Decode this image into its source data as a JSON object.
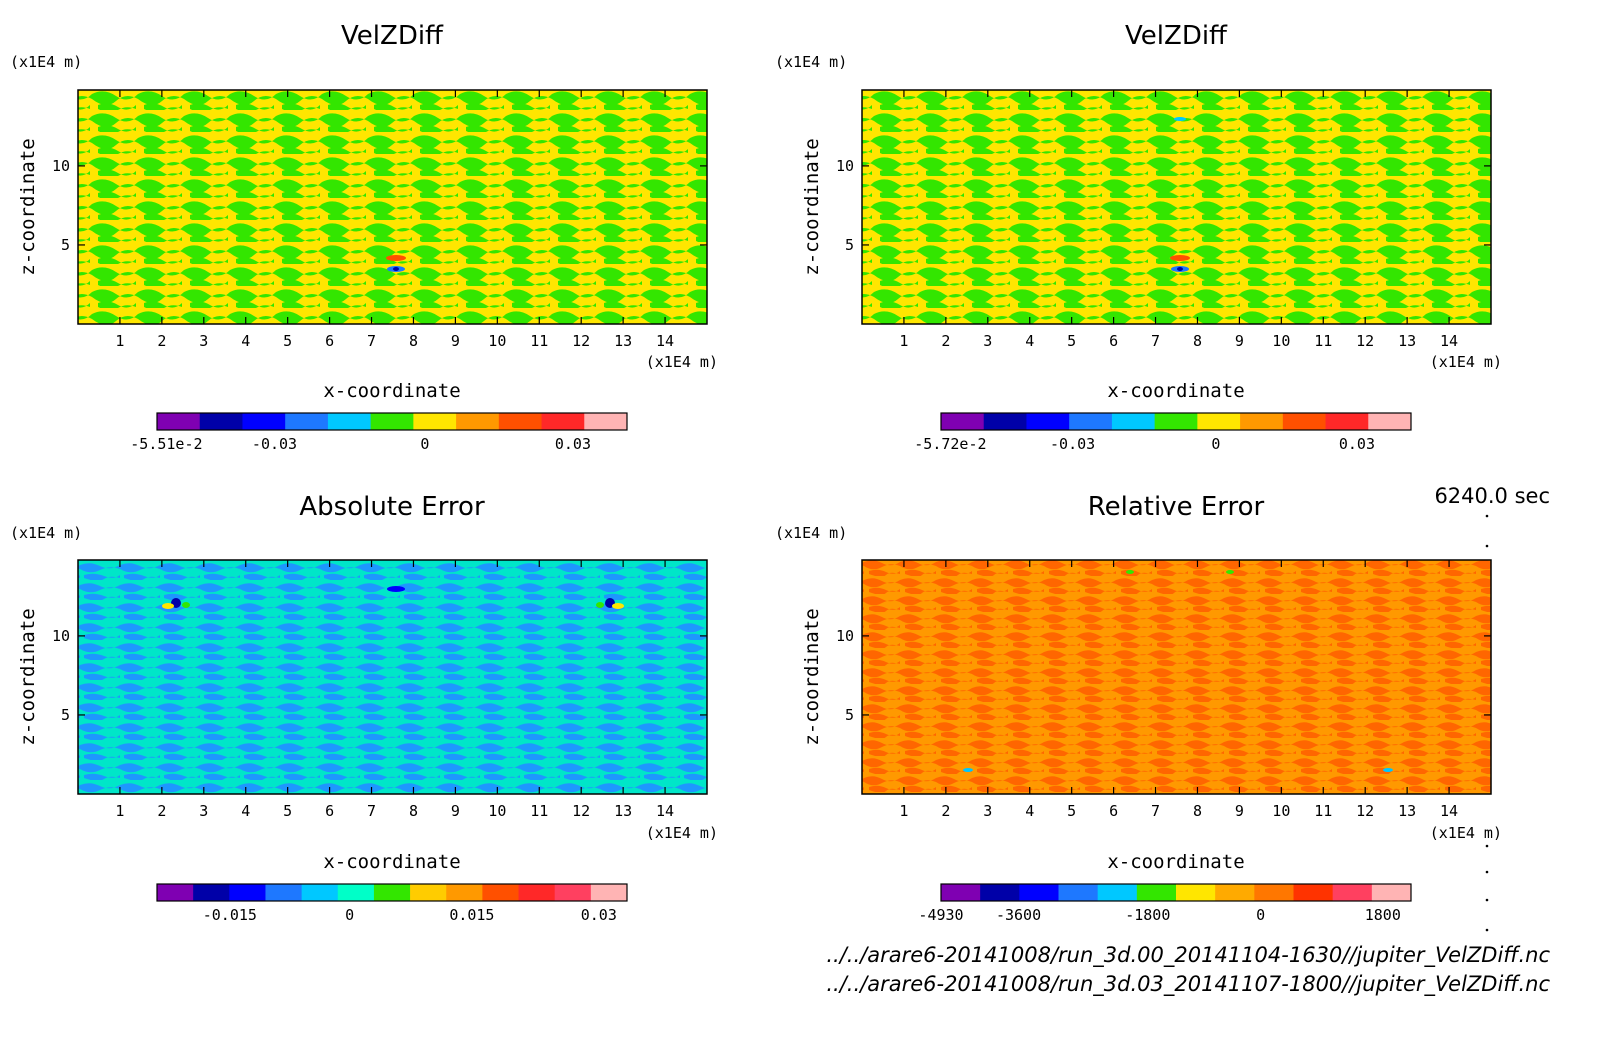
{
  "chart_data": [
    {
      "id": "p1",
      "type": "heatmap",
      "title": "VelZDiff",
      "xlabel": "x-coordinate",
      "ylabel": "z-coordinate",
      "x_unit": "(x1E4 m)",
      "y_unit": "(x1E4 m)",
      "xlim": [
        0,
        15
      ],
      "ylim": [
        0,
        14.8
      ],
      "x_ticks": [
        1,
        2,
        3,
        4,
        5,
        6,
        7,
        8,
        9,
        10,
        11,
        12,
        13,
        14
      ],
      "y_ticks": [
        5,
        10
      ],
      "pattern_colors": [
        "#ffe600",
        "#33e600"
      ],
      "colorbar": {
        "colors": [
          "#7f00b2",
          "#0000a8",
          "#0000ff",
          "#1e78ff",
          "#00c8ff",
          "#33e600",
          "#ffe600",
          "#ff9900",
          "#ff5000",
          "#ff2828",
          "#ffb4b4"
        ],
        "ticks": [
          {
            "label": "-5.51e-2",
            "frac": 0.02
          },
          {
            "label": "-0.03",
            "frac": 0.25
          },
          {
            "label": "0",
            "frac": 0.57
          },
          {
            "label": "0.03",
            "frac": 0.885
          }
        ]
      }
    },
    {
      "id": "p2",
      "type": "heatmap",
      "title": "VelZDiff",
      "xlabel": "x-coordinate",
      "ylabel": "z-coordinate",
      "x_unit": "(x1E4 m)",
      "y_unit": "(x1E4 m)",
      "xlim": [
        0,
        15
      ],
      "ylim": [
        0,
        14.8
      ],
      "x_ticks": [
        1,
        2,
        3,
        4,
        5,
        6,
        7,
        8,
        9,
        10,
        11,
        12,
        13,
        14
      ],
      "y_ticks": [
        5,
        10
      ],
      "pattern_colors": [
        "#ffe600",
        "#33e600"
      ],
      "colorbar": {
        "colors": [
          "#7f00b2",
          "#0000a8",
          "#0000ff",
          "#1e78ff",
          "#00c8ff",
          "#33e600",
          "#ffe600",
          "#ff9900",
          "#ff5000",
          "#ff2828",
          "#ffb4b4"
        ],
        "ticks": [
          {
            "label": "-5.72e-2",
            "frac": 0.02
          },
          {
            "label": "-0.03",
            "frac": 0.28
          },
          {
            "label": "0",
            "frac": 0.585
          },
          {
            "label": "0.03",
            "frac": 0.885
          }
        ]
      }
    },
    {
      "id": "p3",
      "type": "heatmap",
      "title": "Absolute Error",
      "xlabel": "x-coordinate",
      "ylabel": "z-coordinate",
      "x_unit": "(x1E4 m)",
      "y_unit": "(x1E4 m)",
      "xlim": [
        0,
        15
      ],
      "ylim": [
        0,
        14.8
      ],
      "x_ticks": [
        1,
        2,
        3,
        4,
        5,
        6,
        7,
        8,
        9,
        10,
        11,
        12,
        13,
        14
      ],
      "y_ticks": [
        5,
        10
      ],
      "pattern_colors": [
        "#00e6c8",
        "#1e96ff"
      ],
      "colorbar": {
        "colors": [
          "#7f00b2",
          "#0000a8",
          "#0000ff",
          "#1e78ff",
          "#00c8ff",
          "#00ffc8",
          "#33e600",
          "#ffcc00",
          "#ff9900",
          "#ff5000",
          "#ff2828",
          "#ff4060",
          "#ffb4b4"
        ],
        "ticks": [
          {
            "label": "-0.015",
            "frac": 0.155
          },
          {
            "label": "0",
            "frac": 0.41
          },
          {
            "label": "0.015",
            "frac": 0.67
          },
          {
            "label": "0.03",
            "frac": 0.94
          }
        ]
      }
    },
    {
      "id": "p4",
      "type": "heatmap",
      "title": "Relative Error",
      "xlabel": "x-coordinate",
      "ylabel": "z-coordinate",
      "x_unit": "(x1E4 m)",
      "y_unit": "(x1E4 m)",
      "xlim": [
        0,
        15
      ],
      "ylim": [
        0,
        14.8
      ],
      "x_ticks": [
        1,
        2,
        3,
        4,
        5,
        6,
        7,
        8,
        9,
        10,
        11,
        12,
        13,
        14
      ],
      "y_ticks": [
        5,
        10
      ],
      "pattern_colors": [
        "#ff9900",
        "#ff6600"
      ],
      "colorbar": {
        "colors": [
          "#7f00b2",
          "#0000a8",
          "#0000ff",
          "#1e78ff",
          "#00c8ff",
          "#33e600",
          "#ffe600",
          "#ffaa00",
          "#ff7700",
          "#ff3300",
          "#ff4060",
          "#ffb4b4"
        ],
        "ticks": [
          {
            "label": "-4930",
            "frac": 0.0
          },
          {
            "label": "-3600",
            "frac": 0.165
          },
          {
            "label": "-1800",
            "frac": 0.44
          },
          {
            "label": "0",
            "frac": 0.68
          },
          {
            "label": "1800",
            "frac": 0.94
          }
        ]
      }
    }
  ],
  "time_label": "6240.0 sec",
  "files": [
    "../../arare6-20141008/run_3d.00_20141104-1630//jupiter_VelZDiff.nc",
    "../../arare6-20141008/run_3d.03_20141107-1800//jupiter_VelZDiff.nc"
  ]
}
